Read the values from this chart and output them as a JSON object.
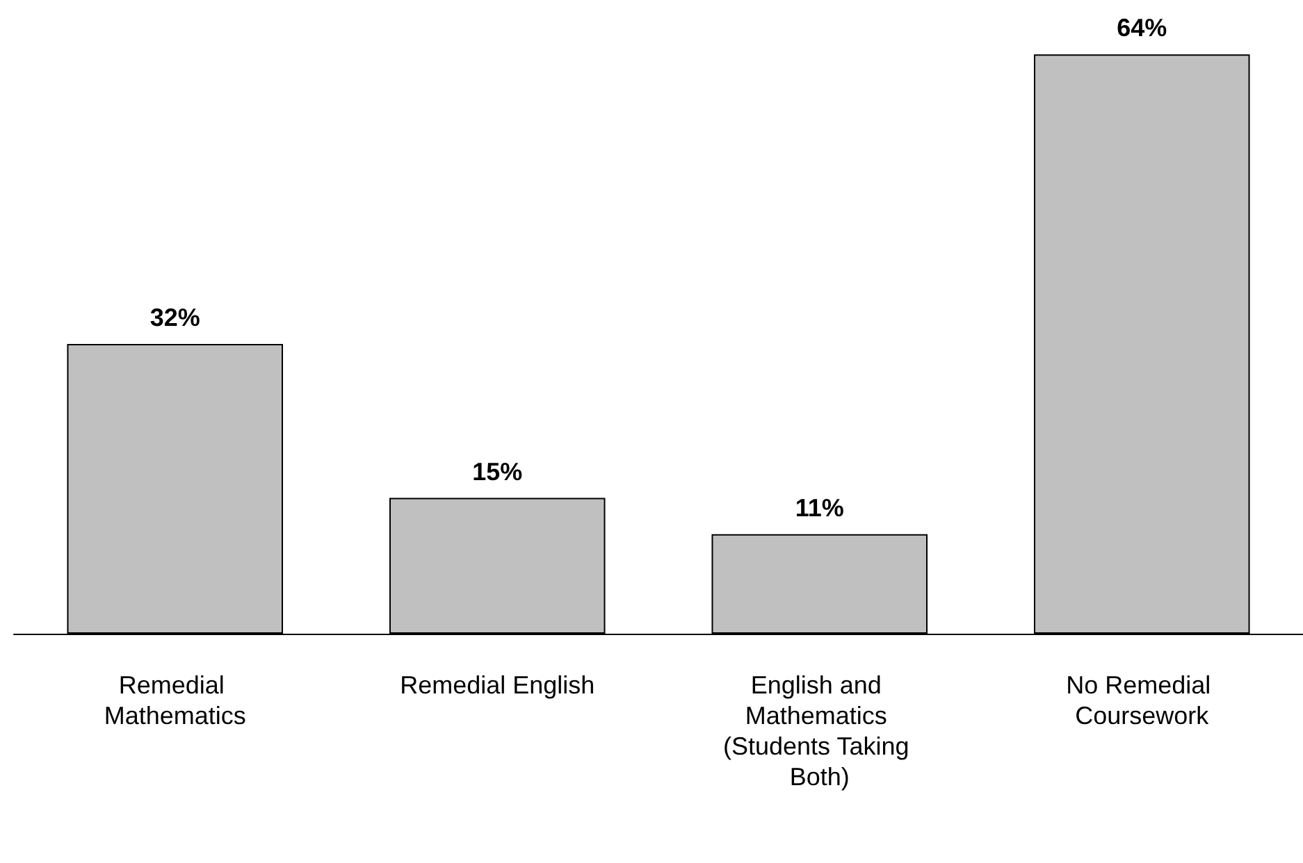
{
  "chart_data": {
    "type": "bar",
    "categories": [
      "Remedial Mathematics",
      "Remedial English",
      "English and Mathematics (Students Taking Both)",
      "No Remedial Coursework"
    ],
    "values": [
      32,
      15,
      11,
      64
    ],
    "value_labels": [
      "32%",
      "15%",
      "11%",
      "64%"
    ],
    "color": "#c0c0c0"
  }
}
